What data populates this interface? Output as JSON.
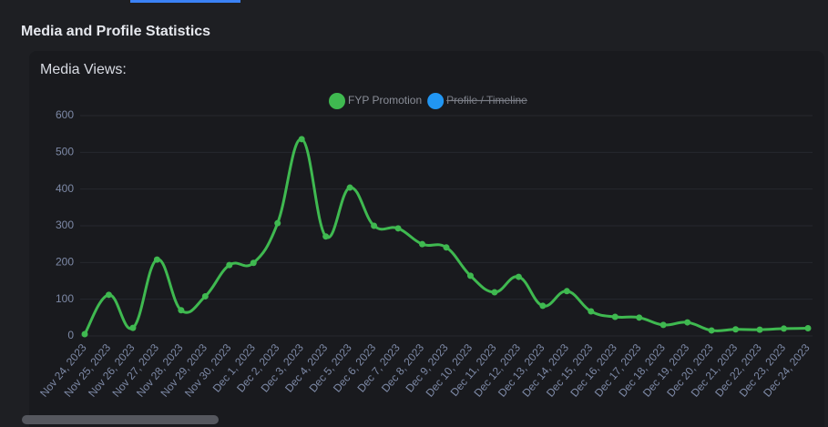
{
  "header": {
    "title": "Media and Profile Statistics"
  },
  "chart_data": {
    "type": "line",
    "title": "Media Views:",
    "categories": [
      "Nov 24, 2023",
      "Nov 25, 2023",
      "Nov 26, 2023",
      "Nov 27, 2023",
      "Nov 28, 2023",
      "Nov 29, 2023",
      "Nov 30, 2023",
      "Dec 1, 2023",
      "Dec 2, 2023",
      "Dec 3, 2023",
      "Dec 4, 2023",
      "Dec 5, 2023",
      "Dec 6, 2023",
      "Dec 7, 2023",
      "Dec 8, 2023",
      "Dec 9, 2023",
      "Dec 10, 2023",
      "Dec 11, 2023",
      "Dec 12, 2023",
      "Dec 13, 2023",
      "Dec 14, 2023",
      "Dec 15, 2023",
      "Dec 16, 2023",
      "Dec 17, 2023",
      "Dec 18, 2023",
      "Dec 19, 2023",
      "Dec 20, 2023",
      "Dec 21, 2023",
      "Dec 22, 2023",
      "Dec 23, 2023",
      "Dec 24, 2023"
    ],
    "series": [
      {
        "name": "FYP Promotion",
        "color": "#3fb950",
        "values": [
          5,
          112,
          22,
          208,
          70,
          108,
          193,
          199,
          307,
          536,
          271,
          404,
          300,
          293,
          250,
          241,
          164,
          119,
          161,
          82,
          122,
          67,
          52,
          50,
          30,
          37,
          15,
          18,
          17,
          20,
          21
        ]
      },
      {
        "name": "Profile / Timeline",
        "color": "#2196f3",
        "hidden": true
      }
    ],
    "ylim": [
      0,
      600
    ],
    "yticks": [
      0,
      100,
      200,
      300,
      400,
      500,
      600
    ],
    "grid": true
  }
}
